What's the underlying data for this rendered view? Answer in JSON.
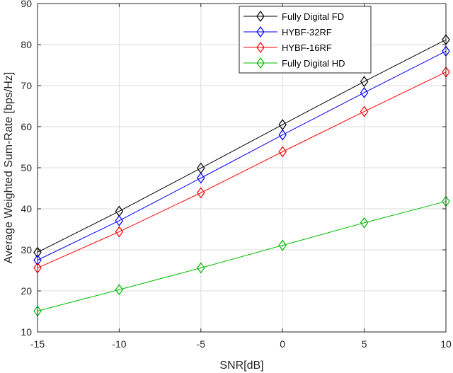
{
  "chart_data": {
    "type": "line",
    "xlabel": "SNR[dB]",
    "ylabel": "Average Weighted Sum-Rate [bps/Hz]",
    "x": [
      -15,
      -10,
      -5,
      0,
      5,
      10
    ],
    "xlim": [
      -15,
      10
    ],
    "ylim": [
      10,
      90
    ],
    "xticks": [
      -15,
      -10,
      -5,
      0,
      5,
      10
    ],
    "yticks": [
      10,
      20,
      30,
      40,
      50,
      60,
      70,
      80,
      90
    ],
    "xtick_labels": [
      "-15",
      "-10",
      "-5",
      "0",
      "5",
      "10"
    ],
    "ytick_labels": [
      "10",
      "20",
      "30",
      "40",
      "50",
      "60",
      "70",
      "80",
      "90"
    ],
    "grid": true,
    "legend_position": "top-right",
    "marker": "diamond",
    "series": [
      {
        "name": "Fully Digital FD",
        "color": "#000000",
        "values": [
          29.4,
          39.4,
          49.9,
          60.5,
          71.0,
          81.2
        ]
      },
      {
        "name": "HYBF-32RF",
        "color": "#0000ff",
        "values": [
          27.5,
          37.1,
          47.5,
          58.0,
          68.3,
          78.4
        ]
      },
      {
        "name": "HYBF-16RF",
        "color": "#ff0000",
        "values": [
          25.6,
          34.4,
          43.9,
          53.9,
          63.7,
          73.3
        ]
      },
      {
        "name": "Fully Digital HD",
        "color": "#00bb00",
        "values": [
          15.1,
          20.3,
          25.6,
          31.1,
          36.6,
          41.8
        ]
      }
    ]
  }
}
